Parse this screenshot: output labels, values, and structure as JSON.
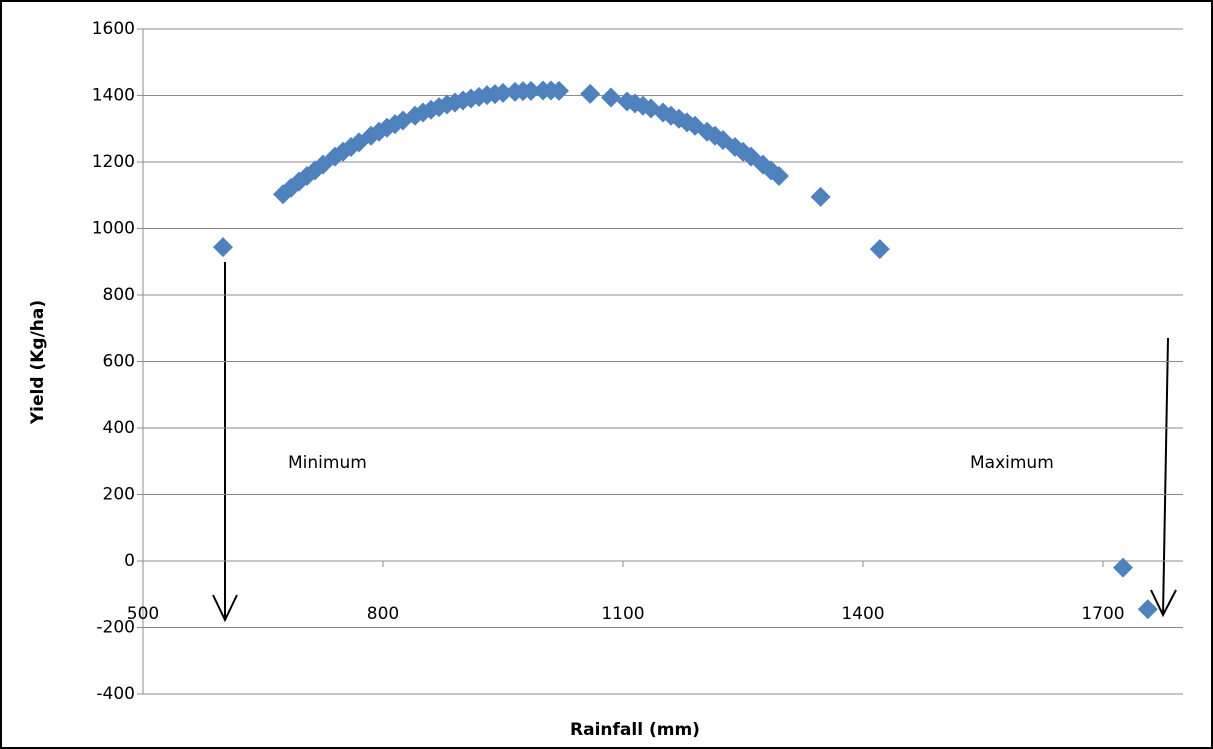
{
  "chart_data": {
    "type": "scatter",
    "x_label": "Rainfall (mm)",
    "y_label": "Yield (Kg/ha)",
    "annotations": [
      "Minimum",
      "Maximum"
    ],
    "series": [
      {
        "color": "#4f81bd",
        "x": [
          600,
          675,
          685,
          695,
          705,
          715,
          725,
          740,
          750,
          760,
          770,
          785,
          795,
          805,
          815,
          825,
          840,
          850,
          860,
          870,
          880,
          890,
          900,
          910,
          920,
          930,
          940,
          950,
          965,
          975,
          985,
          1000,
          1010,
          1020,
          1059,
          1085,
          1105,
          1115,
          1125,
          1135,
          1150,
          1160,
          1170,
          1180,
          1190,
          1205,
          1215,
          1225,
          1240,
          1250,
          1260,
          1275,
          1285,
          1295,
          1347,
          1421,
          1725,
          1756
        ],
        "values": [
          944,
          1103,
          1122,
          1141,
          1158,
          1175,
          1192,
          1216,
          1231,
          1245,
          1259,
          1279,
          1291,
          1303,
          1314,
          1325,
          1339,
          1349,
          1357,
          1365,
          1373,
          1379,
          1385,
          1391,
          1396,
          1401,
          1404,
          1408,
          1411,
          1413,
          1414,
          1415,
          1415,
          1414,
          1405,
          1394,
          1382,
          1376,
          1369,
          1361,
          1349,
          1339,
          1330,
          1319,
          1309,
          1291,
          1279,
          1266,
          1245,
          1231,
          1216,
          1192,
          1175,
          1158,
          1095,
          938,
          -20,
          -145
        ]
      }
    ],
    "xlim": [
      500,
      1800
    ],
    "xticks": [
      500,
      800,
      1100,
      1400,
      1700
    ],
    "ylim": [
      -400,
      1600
    ],
    "yticks": [
      -400,
      -200,
      0,
      200,
      400,
      600,
      800,
      1000,
      1200,
      1400,
      1600
    ],
    "grid": true
  }
}
